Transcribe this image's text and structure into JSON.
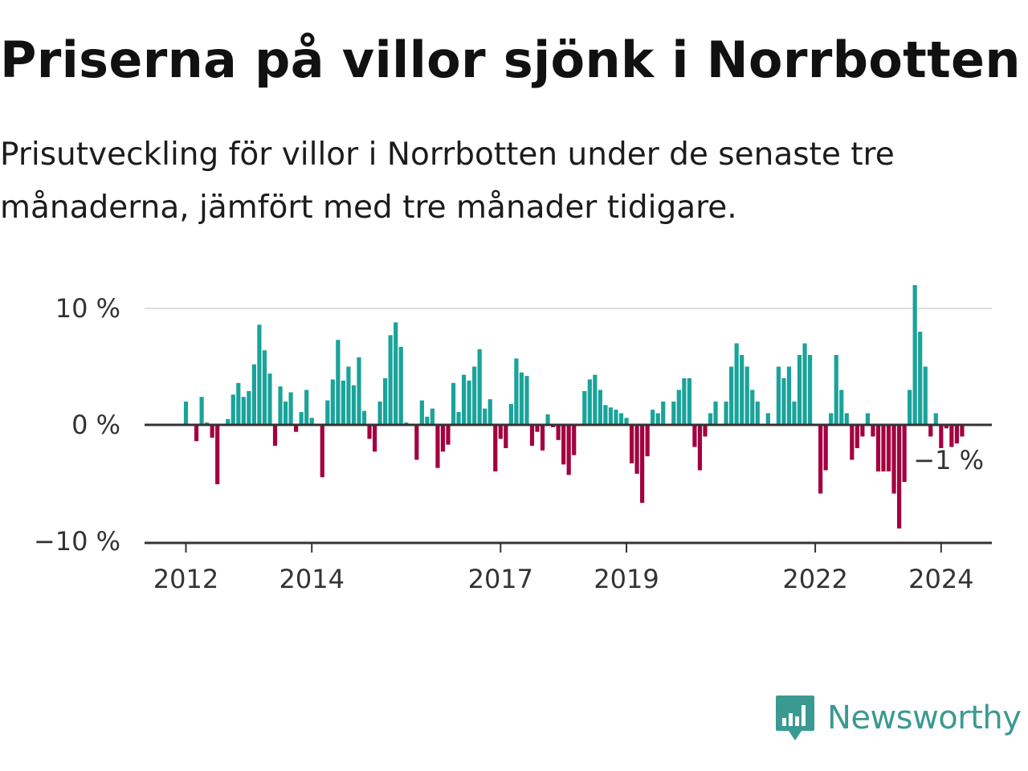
{
  "header": {
    "title": "Priserna på villor sjönk i Norrbotten",
    "subtitle": "Prisutveckling för villor i Norrbotten under de senaste tre månaderna, jämfört med tre månader tidigare."
  },
  "branding": {
    "name": "Newsworthy",
    "icon": "newsworthy-logo-icon"
  },
  "colors": {
    "positive": "#1aa39a",
    "negative": "#a3003f",
    "grid": "#dddddd",
    "axis": "#333333"
  },
  "chart_data": {
    "type": "bar",
    "title": "Priserna på villor sjönk i Norrbotten",
    "ylabel": "",
    "xlabel": "",
    "ylim": [
      -10,
      10
    ],
    "y_ticks": [
      {
        "value": 10,
        "label": "10 %"
      },
      {
        "value": 0,
        "label": "0 %"
      },
      {
        "value": -10,
        "label": "−10 %"
      }
    ],
    "x_ticks": [
      {
        "index": 0,
        "label": "2012"
      },
      {
        "index": 24,
        "label": "2014"
      },
      {
        "index": 60,
        "label": "2017"
      },
      {
        "index": 84,
        "label": "2019"
      },
      {
        "index": 120,
        "label": "2022"
      },
      {
        "index": 144,
        "label": "2024"
      }
    ],
    "start": "2012-01",
    "end_label": "−1 %",
    "values": [
      2.0,
      0.0,
      -1.4,
      2.4,
      0.2,
      -1.1,
      -5.1,
      0.0,
      0.5,
      2.6,
      3.6,
      2.4,
      2.9,
      5.2,
      8.6,
      6.4,
      4.4,
      -1.8,
      3.3,
      2.0,
      2.8,
      -0.6,
      1.1,
      3.0,
      0.6,
      0.0,
      -4.5,
      2.1,
      3.9,
      7.3,
      3.8,
      5.0,
      3.4,
      5.8,
      1.2,
      -1.2,
      -2.3,
      2.0,
      4.0,
      7.7,
      8.8,
      6.7,
      0.2,
      -0.1,
      -3.0,
      2.1,
      0.7,
      1.4,
      -3.7,
      -2.3,
      -1.7,
      3.6,
      1.1,
      4.3,
      3.8,
      5.0,
      6.5,
      1.4,
      2.2,
      -4.0,
      -1.2,
      -2.0,
      1.8,
      5.7,
      4.5,
      4.2,
      -1.8,
      -0.6,
      -2.2,
      0.9,
      -0.2,
      -1.3,
      -3.4,
      -4.3,
      -2.6,
      0.0,
      2.9,
      3.9,
      4.3,
      3.0,
      1.7,
      1.5,
      1.3,
      1.0,
      0.6,
      -3.3,
      -4.2,
      -6.7,
      -2.7,
      1.3,
      1.0,
      2.0,
      0.0,
      2.0,
      3.0,
      4.0,
      4.0,
      -1.9,
      -3.9,
      -1.0,
      1.0,
      2.0,
      0.0,
      2.0,
      5.0,
      7.0,
      6.0,
      5.0,
      3.0,
      2.0,
      0.0,
      1.0,
      0.0,
      5.0,
      4.0,
      5.0,
      2.0,
      6.0,
      7.0,
      6.0,
      0.0,
      -5.9,
      -3.9,
      1.0,
      6.0,
      3.0,
      1.0,
      -3.0,
      -2.0,
      -1.0,
      1.0,
      -1.0,
      -4.0,
      -4.0,
      -4.0,
      -5.9,
      -8.9,
      -4.9,
      3.0,
      12.0,
      8.0,
      5.0,
      -1.0,
      1.0,
      -2.0,
      -0.3,
      -1.9,
      -1.6,
      -1.0
    ]
  }
}
